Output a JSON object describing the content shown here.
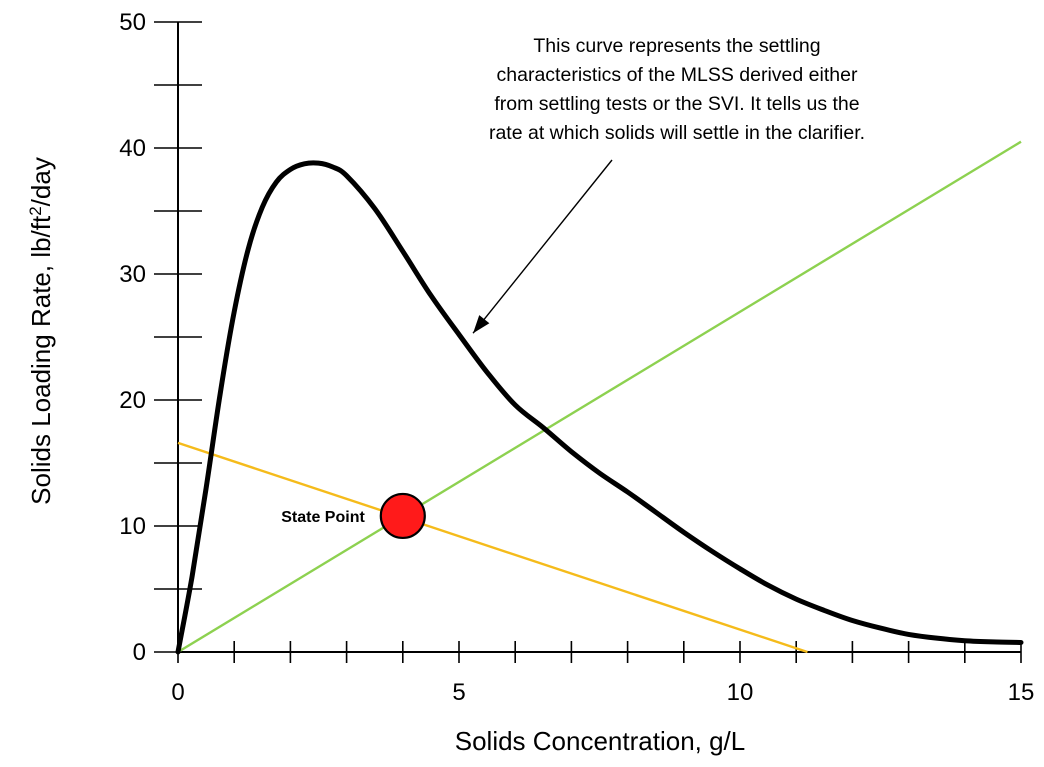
{
  "chart_data": {
    "type": "line",
    "title": "",
    "xlabel": "Solids Concentration, g/L",
    "ylabel": {
      "prefix": "Solids Loading Rate, lb/ft",
      "superscript": "2",
      "suffix": "/day"
    },
    "xlim": [
      0,
      15
    ],
    "ylim": [
      0,
      50
    ],
    "x_tick_labels": [
      "0",
      "5",
      "10",
      "15"
    ],
    "x_tick_values": [
      0,
      5,
      10,
      15
    ],
    "x_minor_step": 1,
    "y_tick_labels": [
      "0",
      "10",
      "20",
      "30",
      "40",
      "50"
    ],
    "y_tick_values": [
      0,
      10,
      20,
      30,
      40,
      50
    ],
    "y_minor_step": 5,
    "grid": false,
    "series": [
      {
        "role": "settling-flux-curve",
        "color": "#000000",
        "points": [
          [
            0,
            0
          ],
          [
            0.25,
            6
          ],
          [
            0.5,
            13
          ],
          [
            0.75,
            20.5
          ],
          [
            1.0,
            27
          ],
          [
            1.25,
            32
          ],
          [
            1.5,
            35.3
          ],
          [
            1.75,
            37.3
          ],
          [
            2.0,
            38.3
          ],
          [
            2.25,
            38.75
          ],
          [
            2.5,
            38.8
          ],
          [
            2.75,
            38.5
          ],
          [
            3.0,
            37.8
          ],
          [
            3.5,
            35.2
          ],
          [
            4.0,
            31.8
          ],
          [
            4.5,
            28.3
          ],
          [
            5.0,
            25.2
          ],
          [
            5.5,
            22.2
          ],
          [
            6.0,
            19.6
          ],
          [
            6.5,
            17.8
          ],
          [
            7.0,
            15.9
          ],
          [
            7.5,
            14.2
          ],
          [
            8.0,
            12.7
          ],
          [
            8.5,
            11.1
          ],
          [
            9.0,
            9.5
          ],
          [
            9.5,
            8.0
          ],
          [
            10.0,
            6.6
          ],
          [
            10.5,
            5.3
          ],
          [
            11.0,
            4.2
          ],
          [
            11.5,
            3.3
          ],
          [
            12.0,
            2.5
          ],
          [
            12.5,
            1.9
          ],
          [
            13.0,
            1.4
          ],
          [
            13.5,
            1.1
          ],
          [
            14.0,
            0.9
          ],
          [
            14.5,
            0.8
          ],
          [
            15.0,
            0.75
          ]
        ]
      },
      {
        "role": "overflow-rate-line",
        "color": "#8dd150",
        "points": [
          [
            0,
            0
          ],
          [
            15,
            40.5
          ]
        ]
      },
      {
        "role": "underflow-rate-line",
        "color": "#f5bb1b",
        "points": [
          [
            0,
            16.6
          ],
          [
            11.2,
            0
          ]
        ]
      }
    ],
    "state_point": {
      "x": 4.0,
      "y": 10.8,
      "label": "State Point",
      "color": "#ff1a1a"
    },
    "annotation": {
      "lines": [
        "This curve represents the settling",
        "characteristics of the MLSS derived either",
        "from settling tests or the SVI. It tells us the",
        "rate at which solids will settle in the clarifier."
      ],
      "arrow_to": [
        5.25,
        25.3
      ]
    }
  }
}
